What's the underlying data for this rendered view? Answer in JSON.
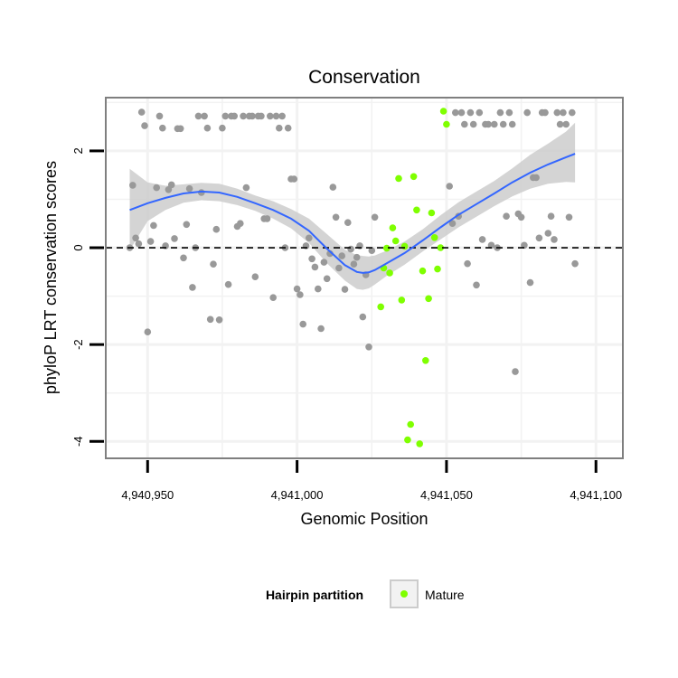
{
  "chart_data": {
    "type": "scatter",
    "title": "Conservation",
    "xlabel": "Genomic Position",
    "ylabel": "phyloP LRT conservation scores",
    "xlim": [
      4940936,
      4941109
    ],
    "ylim": [
      -4.35,
      3.1
    ],
    "x_ticks": [
      4940950,
      4941000,
      4941050,
      4941100
    ],
    "x_tick_labels": [
      "4,940,950",
      "4,941,000",
      "4,941,050",
      "4,941,100"
    ],
    "y_ticks": [
      -4,
      -2,
      0,
      2
    ],
    "y_tick_labels": [
      "-4",
      "-2",
      "0",
      "2"
    ],
    "reference_line": 0,
    "legend": {
      "title": "Hairpin partition",
      "entries": [
        {
          "label": "Mature",
          "color": "#7fff00"
        }
      ]
    },
    "colors": {
      "other": "#999999",
      "mature": "#7fff00",
      "smooth": "#3366ff",
      "band": "#cccccc",
      "panel_border": "#7f7f7f",
      "grid": "#f2f2f2"
    },
    "series": [
      {
        "name": "Other",
        "color": "#999999",
        "points": [
          [
            4940944,
            0.0
          ],
          [
            4940945,
            1.29
          ],
          [
            4940946,
            0.2
          ],
          [
            4940947,
            0.08
          ],
          [
            4940948,
            2.8
          ],
          [
            4940949,
            2.52
          ],
          [
            4940950,
            -1.74
          ],
          [
            4940951,
            0.13
          ],
          [
            4940952,
            0.46
          ],
          [
            4940953,
            1.24
          ],
          [
            4940954,
            2.72
          ],
          [
            4940955,
            2.47
          ],
          [
            4940956,
            0.04
          ],
          [
            4940957,
            1.2
          ],
          [
            4940958,
            1.3
          ],
          [
            4940959,
            0.19
          ],
          [
            4940960,
            2.46
          ],
          [
            4940961,
            2.46
          ],
          [
            4940962,
            -0.21
          ],
          [
            4940963,
            0.48
          ],
          [
            4940964,
            1.22
          ],
          [
            4940965,
            -0.82
          ],
          [
            4940966,
            0.0
          ],
          [
            4940967,
            2.72
          ],
          [
            4940968,
            1.14
          ],
          [
            4940969,
            2.72
          ],
          [
            4940970,
            2.47
          ],
          [
            4940971,
            -1.48
          ],
          [
            4940972,
            -0.34
          ],
          [
            4940973,
            0.38
          ],
          [
            4940974,
            -1.49
          ],
          [
            4940975,
            2.47
          ],
          [
            4940976,
            2.72
          ],
          [
            4940977,
            -0.76
          ],
          [
            4940978,
            2.72
          ],
          [
            4940979,
            2.72
          ],
          [
            4940980,
            0.44
          ],
          [
            4940981,
            0.5
          ],
          [
            4940982,
            2.72
          ],
          [
            4940983,
            1.24
          ],
          [
            4940984,
            2.72
          ],
          [
            4940985,
            2.72
          ],
          [
            4940986,
            -0.6
          ],
          [
            4940987,
            2.72
          ],
          [
            4940988,
            2.72
          ],
          [
            4940989,
            0.6
          ],
          [
            4940990,
            0.6
          ],
          [
            4940991,
            2.72
          ],
          [
            4940992,
            -1.03
          ],
          [
            4940993,
            2.72
          ],
          [
            4940994,
            2.47
          ],
          [
            4940995,
            2.72
          ],
          [
            4940996,
            0.0
          ],
          [
            4940997,
            2.47
          ],
          [
            4940998,
            1.42
          ],
          [
            4940999,
            1.42
          ],
          [
            4941000,
            -0.85
          ],
          [
            4941001,
            -0.97
          ],
          [
            4941002,
            -1.58
          ],
          [
            4941003,
            0.04
          ],
          [
            4941004,
            0.2
          ],
          [
            4941005,
            -0.23
          ],
          [
            4941006,
            -0.4
          ],
          [
            4941007,
            -0.85
          ],
          [
            4941008,
            -1.67
          ],
          [
            4941009,
            -0.3
          ],
          [
            4941010,
            -0.64
          ],
          [
            4941011,
            -0.12
          ],
          [
            4941012,
            1.25
          ],
          [
            4941013,
            0.63
          ],
          [
            4941014,
            -0.42
          ],
          [
            4941015,
            -0.17
          ],
          [
            4941016,
            -0.86
          ],
          [
            4941017,
            0.52
          ],
          [
            4941018,
            -0.03
          ],
          [
            4941019,
            -0.34
          ],
          [
            4941020,
            -0.2
          ],
          [
            4941021,
            0.04
          ],
          [
            4941022,
            -1.43
          ],
          [
            4941023,
            -0.56
          ],
          [
            4941024,
            -2.05
          ],
          [
            4941025,
            -0.06
          ],
          [
            4941026,
            0.63
          ],
          [
            4941051,
            1.27
          ],
          [
            4941052,
            0.5
          ],
          [
            4941053,
            2.79
          ],
          [
            4941054,
            0.65
          ],
          [
            4941055,
            2.79
          ],
          [
            4941056,
            2.55
          ],
          [
            4941057,
            -0.33
          ],
          [
            4941058,
            2.79
          ],
          [
            4941059,
            2.55
          ],
          [
            4941060,
            -0.77
          ],
          [
            4941061,
            2.79
          ],
          [
            4941062,
            0.17
          ],
          [
            4941063,
            2.55
          ],
          [
            4941064,
            2.55
          ],
          [
            4941065,
            0.05
          ],
          [
            4941066,
            2.55
          ],
          [
            4941067,
            0.0
          ],
          [
            4941068,
            2.79
          ],
          [
            4941069,
            2.55
          ],
          [
            4941070,
            0.65
          ],
          [
            4941071,
            2.79
          ],
          [
            4941072,
            2.55
          ],
          [
            4941073,
            -2.56
          ],
          [
            4941074,
            0.7
          ],
          [
            4941075,
            0.63
          ],
          [
            4941076,
            0.05
          ],
          [
            4941077,
            2.79
          ],
          [
            4941078,
            -0.72
          ],
          [
            4941079,
            1.45
          ],
          [
            4941080,
            1.45
          ],
          [
            4941081,
            0.2
          ],
          [
            4941082,
            2.79
          ],
          [
            4941083,
            2.79
          ],
          [
            4941084,
            0.3
          ],
          [
            4941085,
            0.65
          ],
          [
            4941086,
            0.17
          ],
          [
            4941087,
            2.79
          ],
          [
            4941088,
            2.55
          ],
          [
            4941089,
            2.79
          ],
          [
            4941090,
            2.55
          ],
          [
            4941091,
            0.63
          ],
          [
            4941092,
            2.79
          ],
          [
            4941093,
            -0.33
          ]
        ]
      },
      {
        "name": "Mature",
        "color": "#7fff00",
        "points": [
          [
            4941028,
            -1.22
          ],
          [
            4941029,
            -0.42
          ],
          [
            4941030,
            -0.01
          ],
          [
            4941031,
            -0.52
          ],
          [
            4941032,
            0.41
          ],
          [
            4941033,
            0.14
          ],
          [
            4941034,
            1.43
          ],
          [
            4941035,
            -1.08
          ],
          [
            4941036,
            0.03
          ],
          [
            4941037,
            -3.97
          ],
          [
            4941038,
            -3.65
          ],
          [
            4941039,
            1.47
          ],
          [
            4941040,
            0.78
          ],
          [
            4941041,
            -4.05
          ],
          [
            4941042,
            -0.48
          ],
          [
            4941043,
            -2.33
          ],
          [
            4941044,
            -1.05
          ],
          [
            4941045,
            0.72
          ],
          [
            4941046,
            0.21
          ],
          [
            4941047,
            -0.44
          ],
          [
            4941048,
            0.0
          ],
          [
            4941049,
            2.82
          ],
          [
            4941050,
            2.55
          ]
        ]
      }
    ],
    "smooth": {
      "x": [
        4940944,
        4940950,
        4940956,
        4940962,
        4940968,
        4940974,
        4940980,
        4940986,
        4940992,
        4940998,
        4941004,
        4941010,
        4941016,
        4941020,
        4941022,
        4941024,
        4941026,
        4941030,
        4941036,
        4941042,
        4941048,
        4941054,
        4941060,
        4941066,
        4941072,
        4941078,
        4941084,
        4941090,
        4941093
      ],
      "y": [
        0.78,
        0.92,
        1.03,
        1.12,
        1.16,
        1.14,
        1.05,
        0.92,
        0.78,
        0.6,
        0.35,
        -0.02,
        -0.36,
        -0.5,
        -0.52,
        -0.51,
        -0.46,
        -0.32,
        -0.11,
        0.15,
        0.42,
        0.68,
        0.9,
        1.12,
        1.35,
        1.55,
        1.72,
        1.87,
        1.94
      ],
      "lower": [
        -0.05,
        0.55,
        0.78,
        0.93,
        0.98,
        0.96,
        0.88,
        0.76,
        0.6,
        0.4,
        0.1,
        -0.32,
        -0.68,
        -0.85,
        -0.87,
        -0.84,
        -0.76,
        -0.58,
        -0.35,
        -0.08,
        0.17,
        0.42,
        0.64,
        0.86,
        1.06,
        1.22,
        1.32,
        1.36,
        1.35
      ],
      "upper": [
        1.63,
        1.35,
        1.28,
        1.31,
        1.34,
        1.32,
        1.22,
        1.08,
        0.96,
        0.8,
        0.6,
        0.28,
        -0.04,
        -0.15,
        -0.17,
        -0.18,
        -0.16,
        -0.06,
        0.13,
        0.38,
        0.67,
        0.94,
        1.16,
        1.38,
        1.64,
        1.92,
        2.15,
        2.4,
        2.58
      ]
    }
  }
}
